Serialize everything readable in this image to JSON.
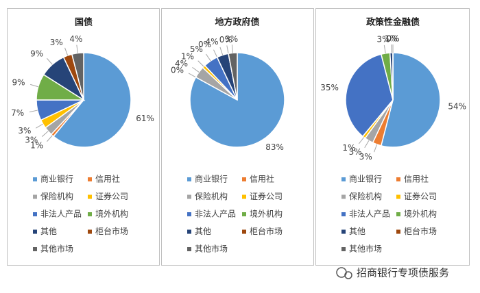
{
  "chart_data": [
    {
      "type": "pie",
      "title": "国债",
      "categories": [
        "商业银行",
        "信用社",
        "保险机构",
        "证券公司",
        "非法人产品",
        "境外机构",
        "其他",
        "柜台市场",
        "其他市场"
      ],
      "values": [
        61,
        1,
        3,
        3,
        7,
        9,
        9,
        3,
        4
      ],
      "value_labels": [
        "61%",
        "1%",
        "3%",
        "3%",
        "7%",
        "9%",
        "9%",
        "3%",
        "4%"
      ],
      "colors": [
        "#5b9bd5",
        "#ed7d31",
        "#a5a5a5",
        "#ffc000",
        "#4472c4",
        "#70ad47",
        "#264478",
        "#9e480e",
        "#636363"
      ]
    },
    {
      "type": "pie",
      "title": "地方政府债",
      "categories": [
        "商业银行",
        "信用社",
        "保险机构",
        "证券公司",
        "非法人产品",
        "境外机构",
        "其他",
        "柜台市场",
        "其他市场"
      ],
      "values": [
        83,
        0,
        4,
        1,
        5,
        0,
        4,
        0,
        3
      ],
      "value_labels": [
        "83%",
        "0%",
        "4%",
        "1%",
        "5%",
        "0%",
        "4%",
        "0%",
        "3%"
      ],
      "colors": [
        "#5b9bd5",
        "#ed7d31",
        "#a5a5a5",
        "#ffc000",
        "#4472c4",
        "#70ad47",
        "#264478",
        "#9e480e",
        "#636363"
      ]
    },
    {
      "type": "pie",
      "title": "政策性金融债",
      "categories": [
        "商业银行",
        "信用社",
        "保险机构",
        "证券公司",
        "非法人产品",
        "境外机构",
        "其他",
        "柜台市场",
        "其他市场"
      ],
      "values": [
        54,
        3,
        3,
        1,
        35,
        3,
        1,
        0,
        0
      ],
      "value_labels": [
        "54%",
        "3%",
        "3%",
        "1%",
        "35%",
        "3%",
        "1%",
        "0%",
        "0%"
      ],
      "colors": [
        "#5b9bd5",
        "#ed7d31",
        "#a5a5a5",
        "#ffc000",
        "#4472c4",
        "#70ad47",
        "#264478",
        "#9e480e",
        "#636363"
      ]
    }
  ],
  "watermark": "招商银行专项债服务"
}
